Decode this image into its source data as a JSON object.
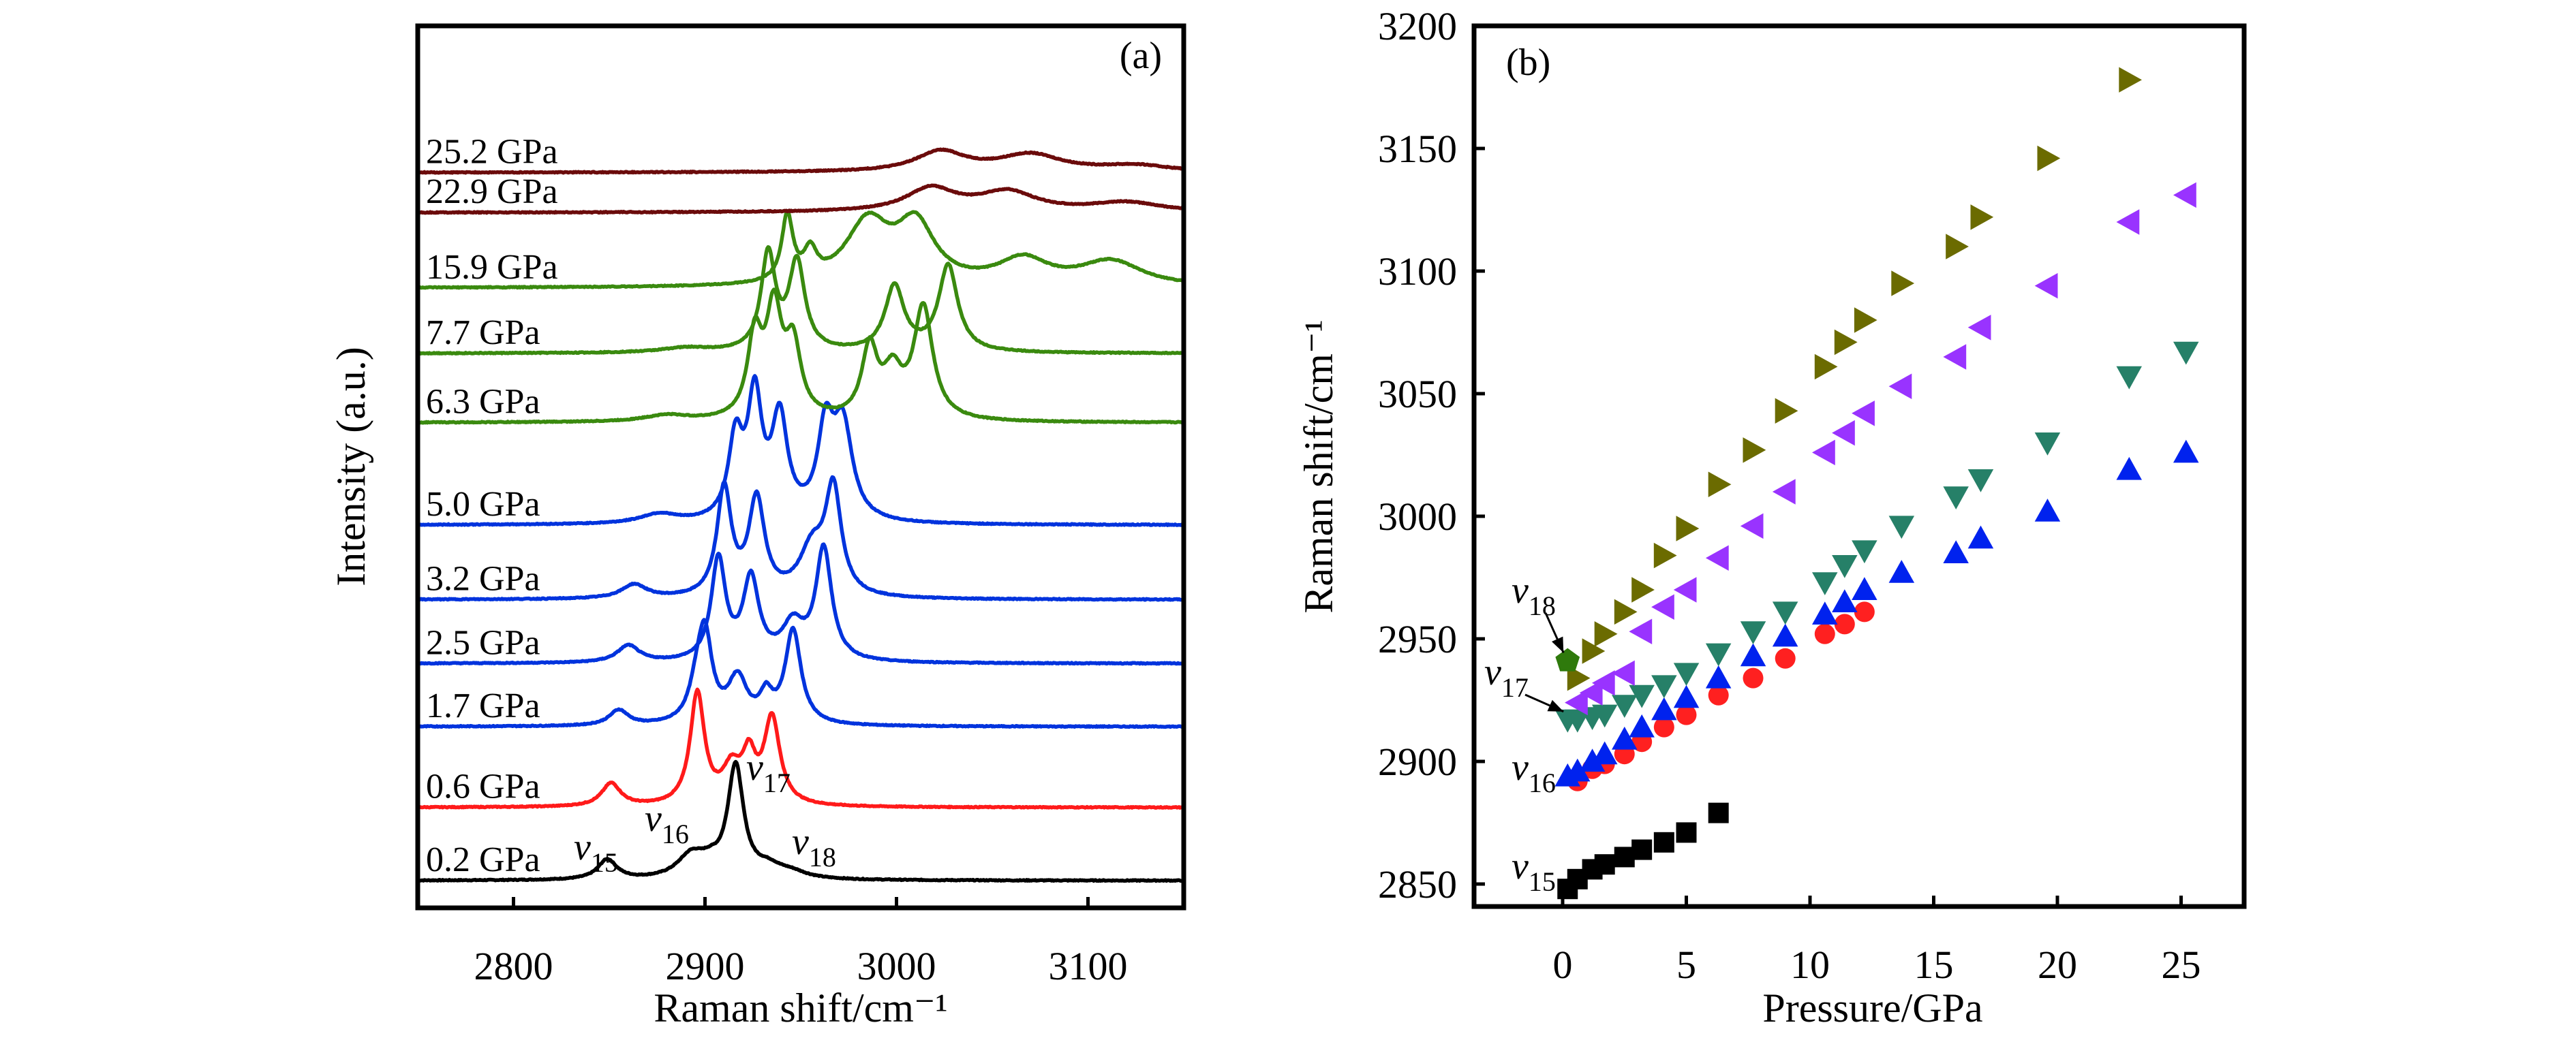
{
  "chart_data": [
    {
      "panel": "(a)",
      "type": "line",
      "title": "",
      "xlabel": "Raman shift/cm⁻¹",
      "ylabel": "Intensity (a.u.)",
      "xlim": [
        2750,
        3150
      ],
      "xticks": [
        2800,
        2900,
        3000,
        3100
      ],
      "yticks": [],
      "grid": false,
      "legend": "none (traces labelled inline at left)",
      "mode_annotations": [
        {
          "mode": "v",
          "sub": "15",
          "near_x": 2845
        },
        {
          "mode": "v",
          "sub": "16",
          "near_x": 2880
        },
        {
          "mode": "v",
          "sub": "17",
          "near_x": 2930
        },
        {
          "mode": "v",
          "sub": "18",
          "near_x": 2955
        }
      ],
      "series": [
        {
          "name": "0.2 GPa",
          "color": "#000000",
          "offset": 0,
          "peaks": [
            [
              2849,
              0.26,
              6
            ],
            [
              2893,
              0.3,
              9
            ],
            [
              2903,
              0.12,
              6
            ],
            [
              2916,
              1.45,
              5
            ],
            [
              2933,
              0.13,
              8
            ],
            [
              2945,
              0.08,
              10
            ]
          ]
        },
        {
          "name": "0.6 GPa",
          "color": "#ff1a1a",
          "offset": 0.95,
          "peaks": [
            [
              2851,
              0.3,
              6
            ],
            [
              2896,
              1.45,
              4.5
            ],
            [
              2914,
              0.45,
              6
            ],
            [
              2923,
              0.55,
              4
            ],
            [
              2935,
              1.12,
              5
            ]
          ]
        },
        {
          "name": "1.7 GPa",
          "color": "#0033dd",
          "offset": 2.0,
          "peaks": [
            [
              2855,
              0.2,
              6
            ],
            [
              2896,
              0.4,
              5
            ],
            [
              2900,
              1.05,
              4.5
            ],
            [
              2917,
              0.58,
              6
            ],
            [
              2932,
              0.33,
              4
            ],
            [
              2946,
              1.22,
              5
            ]
          ]
        },
        {
          "name": "2.5 GPa",
          "color": "#0033dd",
          "offset": 2.82,
          "peaks": [
            [
              2860,
              0.22,
              7
            ],
            [
              2907,
              1.32,
              4.5
            ],
            [
              2924,
              1.05,
              5
            ],
            [
              2946,
              0.45,
              7
            ],
            [
              2962,
              1.45,
              5
            ]
          ]
        },
        {
          "name": "3.2 GPa",
          "color": "#0033dd",
          "offset": 3.65,
          "peaks": [
            [
              2863,
              0.18,
              8
            ],
            [
              2910,
              1.4,
              4.5
            ],
            [
              2927,
              1.25,
              5
            ],
            [
              2956,
              0.6,
              8
            ],
            [
              2967,
              1.35,
              5
            ]
          ]
        },
        {
          "name": "5.0 GPa",
          "color": "#0033dd",
          "offset": 4.62,
          "peaks": [
            [
              2876,
              0.12,
              12
            ],
            [
              2916,
              1.02,
              4.5
            ],
            [
              2926,
              1.55,
              4.5
            ],
            [
              2939,
              1.3,
              5
            ],
            [
              2963,
              1.12,
              5
            ],
            [
              2972,
              1.2,
              6
            ]
          ]
        },
        {
          "name": "6.3 GPa",
          "color": "#3a8a0f",
          "offset": 5.95,
          "peaks": [
            [
              2880,
              0.08,
              14
            ],
            [
              2926,
              1.02,
              4.5
            ],
            [
              2936,
              1.35,
              5
            ],
            [
              2946,
              0.9,
              5
            ],
            [
              2986,
              0.9,
              5
            ],
            [
              2998,
              0.55,
              6
            ],
            [
              3014,
              1.45,
              6
            ]
          ]
        },
        {
          "name": "7.7 GPa",
          "color": "#3a8a0f",
          "offset": 6.85,
          "peaks": [
            [
              2890,
              0.06,
              16
            ],
            [
              2933,
              1.25,
              4.5
            ],
            [
              2948,
              1.15,
              5
            ],
            [
              2999,
              0.85,
              6
            ],
            [
              3027,
              1.12,
              6
            ]
          ]
        },
        {
          "name": "15.9 GPa",
          "color": "#3a8a0f",
          "offset": 7.7,
          "peaks": [
            [
              2943,
              0.85,
              3.5
            ],
            [
              2955,
              0.35,
              4
            ],
            [
              2985,
              0.8,
              14
            ],
            [
              3010,
              0.75,
              12
            ],
            [
              3066,
              0.33,
              16
            ],
            [
              3112,
              0.32,
              20
            ]
          ]
        },
        {
          "name": "22.9 GPa",
          "color": "#6b0b0b",
          "offset": 8.68,
          "peaks": [
            [
              3018,
              0.3,
              16
            ],
            [
              3058,
              0.25,
              18
            ],
            [
              3120,
              0.12,
              22
            ]
          ]
        },
        {
          "name": "25.2 GPa",
          "color": "#6b0b0b",
          "offset": 9.2,
          "peaks": [
            [
              3023,
              0.26,
              16
            ],
            [
              3070,
              0.22,
              20
            ],
            [
              3125,
              0.08,
              22
            ]
          ]
        }
      ]
    },
    {
      "panel": "(b)",
      "type": "scatter",
      "title": "",
      "xlabel": "Pressure/GPa",
      "ylabel": "Raman shift/cm⁻¹",
      "xlim": [
        -3.6,
        27.5
      ],
      "ylim": [
        2841,
        3200
      ],
      "xticks": [
        0,
        5,
        10,
        15,
        20,
        25
      ],
      "yticks": [
        2850,
        2900,
        2950,
        3000,
        3050,
        3100,
        3150,
        3200
      ],
      "grid": false,
      "legend": "none (modes labelled inline at left)",
      "mode_annotations": [
        {
          "mode": "v",
          "sub": "18",
          "arrow_to": [
            0.2,
            2941
          ]
        },
        {
          "mode": "v",
          "sub": "17",
          "arrow_to": [
            0.2,
            2917
          ]
        },
        {
          "mode": "v",
          "sub": "16"
        },
        {
          "mode": "v",
          "sub": "15"
        }
      ],
      "series": [
        {
          "name": "ν15",
          "marker": "square",
          "color": "#000000",
          "x": [
            0.2,
            0.6,
            1.2,
            1.7,
            2.5,
            3.2,
            4.1,
            5.0,
            6.3
          ],
          "y": [
            2848,
            2852,
            2856,
            2858,
            2861,
            2864,
            2867,
            2871,
            2879
          ]
        },
        {
          "name": "ν16 (circle)",
          "marker": "circle",
          "color": "#ff2020",
          "x": [
            0.6,
            1.2,
            1.7,
            2.5,
            3.2,
            4.1,
            5.0,
            6.3,
            7.7,
            9.0,
            10.6,
            11.4,
            12.2
          ],
          "y": [
            2892,
            2897,
            2899,
            2903,
            2908,
            2914,
            2919,
            2927,
            2934,
            2942,
            2952,
            2956,
            2961
          ]
        },
        {
          "name": "ν16 (up-triangle)",
          "marker": "triangle-up",
          "color": "#0022ee",
          "x": [
            0.2,
            0.6,
            1.2,
            1.7,
            2.5,
            3.2,
            4.1,
            5.0,
            6.3,
            7.7,
            9.0,
            10.6,
            11.4,
            12.2,
            13.7,
            15.9,
            16.9,
            19.6,
            22.9,
            25.2
          ],
          "y": [
            2894,
            2896,
            2900,
            2903,
            2909,
            2914,
            2921,
            2926,
            2934,
            2943,
            2951,
            2960,
            2965,
            2970,
            2977,
            2985,
            2991,
            3002,
            3019,
            3026
          ]
        },
        {
          "name": "ν17 (down-triangle)",
          "marker": "triangle-down",
          "color": "#268068",
          "x": [
            0.2,
            0.6,
            1.2,
            1.7,
            2.5,
            3.2,
            4.1,
            5.0,
            6.3,
            7.7,
            9.0,
            10.6,
            11.4,
            12.2,
            13.7,
            15.9,
            16.9,
            19.6,
            22.9,
            25.2
          ],
          "y": [
            2917,
            2917,
            2918,
            2919,
            2923,
            2927,
            2931,
            2936,
            2944,
            2953,
            2961,
            2973,
            2980,
            2986,
            2996,
            3008,
            3015,
            3030,
            3057,
            3067
          ]
        },
        {
          "name": "ν17 (left-triangle)",
          "marker": "triangle-left",
          "color": "#9933ff",
          "x": [
            0.6,
            1.2,
            1.7,
            2.5,
            3.2,
            4.1,
            5.0,
            6.3,
            7.7,
            9.0,
            10.6,
            11.4,
            12.2,
            13.7,
            15.9,
            16.9,
            19.6,
            22.9,
            25.2
          ],
          "y": [
            2924,
            2928,
            2932,
            2936,
            2953,
            2963,
            2970,
            2983,
            2996,
            3010,
            3026,
            3034,
            3042,
            3053,
            3065,
            3077,
            3094,
            3120,
            3131
          ]
        },
        {
          "name": "ν18 (right-triangle)",
          "marker": "triangle-right",
          "color": "#6b6b00",
          "x": [
            0.6,
            1.2,
            1.7,
            2.5,
            3.2,
            4.1,
            5.0,
            6.3,
            7.7,
            9.0,
            10.6,
            11.4,
            12.2,
            13.7,
            15.9,
            16.9,
            19.6,
            22.9
          ],
          "y": [
            2934,
            2945,
            2952,
            2961,
            2970,
            2984,
            2995,
            3013,
            3027,
            3043,
            3061,
            3071,
            3080,
            3095,
            3110,
            3122,
            3146,
            3178
          ]
        },
        {
          "name": "ν18 (pentagon)",
          "marker": "pentagon",
          "color": "#2f7a0c",
          "x": [
            0.2
          ],
          "y": [
            2941
          ]
        }
      ]
    }
  ]
}
